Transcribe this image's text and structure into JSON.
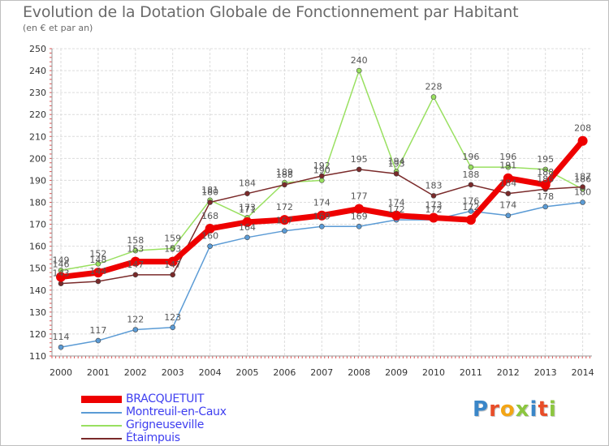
{
  "chart_data": {
    "type": "line",
    "title": "Evolution de la Dotation Globale de Fonctionnement par Habitant",
    "subtitle": "(en € et par an)",
    "x": [
      2000,
      2001,
      2002,
      2003,
      2004,
      2005,
      2006,
      2007,
      2008,
      2009,
      2010,
      2011,
      2012,
      2013,
      2014
    ],
    "ylim": [
      110,
      250
    ],
    "yticks": [
      110,
      120,
      130,
      140,
      150,
      160,
      170,
      180,
      190,
      200,
      210,
      220,
      230,
      240,
      250
    ],
    "grid": true,
    "series": [
      {
        "name": "Montreuil-en-Caux",
        "color": "#5b9bd5",
        "values": [
          114,
          117,
          122,
          123,
          160,
          164,
          167,
          169,
          169,
          172,
          172,
          176,
          174,
          178,
          180
        ]
      },
      {
        "name": "Grigneuseville",
        "color": "#99e060",
        "values": [
          149,
          152,
          158,
          159,
          181,
          173,
          189,
          190,
          240,
          194,
          228,
          196,
          196,
          195,
          186
        ]
      },
      {
        "name": "Étaimpuis",
        "color": "#7a2a2a",
        "values": [
          143,
          144,
          147,
          147,
          180,
          184,
          188,
          192,
          195,
          193,
          183,
          188,
          184,
          186,
          187
        ]
      },
      {
        "name": "BRACQUETUIT",
        "color": "#ee0000",
        "values": [
          146,
          148,
          153,
          153,
          168,
          171,
          172,
          174,
          177,
          174,
          173,
          172,
          191,
          188,
          208
        ]
      }
    ],
    "legend": {
      "position": "bottom-left",
      "entries": [
        "BRACQUETUIT",
        "Montreuil-en-Caux",
        "Grigneuseville",
        "Étaimpuis"
      ]
    }
  },
  "logo": {
    "letters": [
      {
        "ch": "P",
        "color": "#3a86c8"
      },
      {
        "ch": "r",
        "color": "#e84d28"
      },
      {
        "ch": "o",
        "color": "#f3a515"
      },
      {
        "ch": "x",
        "color": "#8cc63f"
      },
      {
        "ch": "i",
        "color": "#3a86c8"
      },
      {
        "ch": "t",
        "color": "#e84d28"
      },
      {
        "ch": "i",
        "color": "#8cc63f"
      }
    ]
  },
  "legend_text_color": "#3e3ef0"
}
